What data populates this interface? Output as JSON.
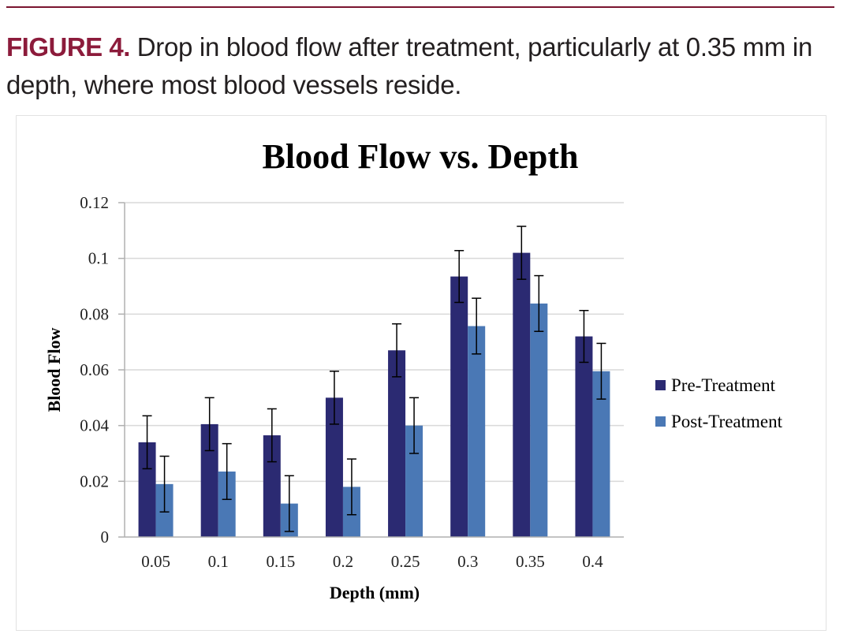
{
  "caption": {
    "label": "FIGURE 4.",
    "text": " Drop in blood flow after treatment, particularly at 0.35 mm in depth, where most blood vessels reside."
  },
  "colors": {
    "rule": "#7a1530",
    "label": "#8c1b3b",
    "pre": "#2b2a72",
    "post": "#4a78b5"
  },
  "chart_data": {
    "type": "bar",
    "title": "Blood Flow vs. Depth",
    "xlabel": "Depth (mm)",
    "ylabel": "Blood Flow",
    "categories": [
      "0.05",
      "0.1",
      "0.15",
      "0.2",
      "0.25",
      "0.3",
      "0.35",
      "0.4"
    ],
    "ylim": [
      0,
      0.12
    ],
    "yticks": [
      "0",
      "0.02",
      "0.04",
      "0.06",
      "0.08",
      "0.1",
      "0.12"
    ],
    "grid": true,
    "legend_position": "right",
    "series": [
      {
        "name": "Pre-Treatment",
        "color": "#2b2a72",
        "values": [
          0.034,
          0.0405,
          0.0365,
          0.05,
          0.067,
          0.0935,
          0.102,
          0.072
        ],
        "errors": [
          0.0095,
          0.0095,
          0.0095,
          0.0095,
          0.0095,
          0.0093,
          0.0095,
          0.0093
        ]
      },
      {
        "name": "Post-Treatment",
        "color": "#4a78b5",
        "values": [
          0.019,
          0.0235,
          0.012,
          0.018,
          0.04,
          0.0757,
          0.0838,
          0.0595
        ],
        "errors": [
          0.01,
          0.01,
          0.01,
          0.01,
          0.01,
          0.01,
          0.01,
          0.01
        ]
      }
    ]
  }
}
